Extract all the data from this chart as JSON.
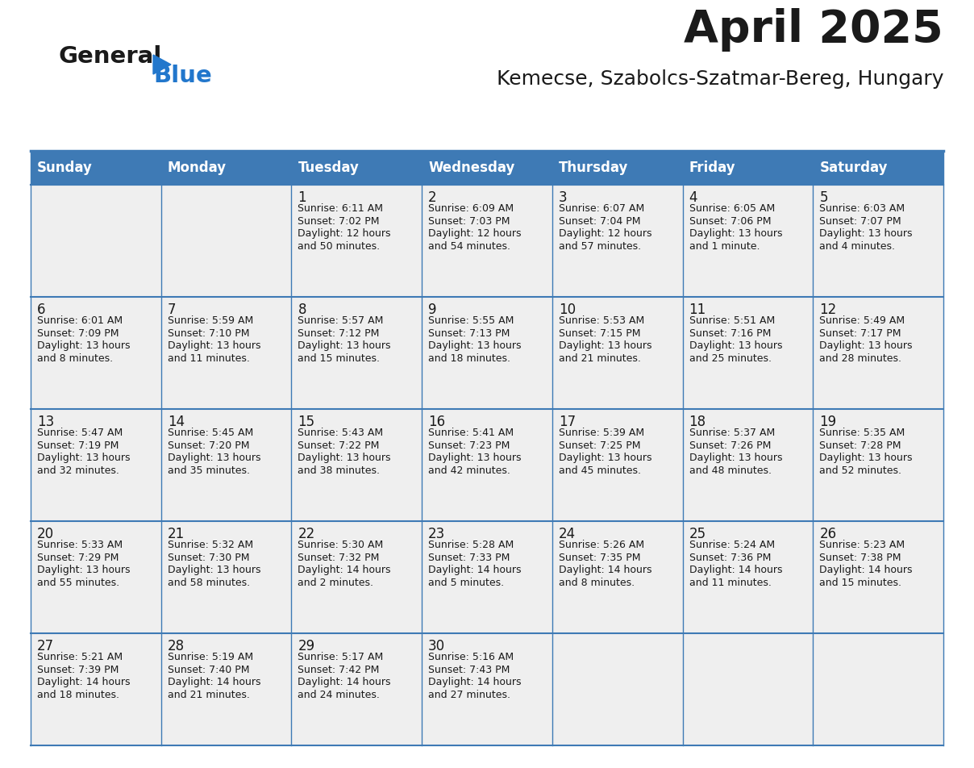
{
  "title": "April 2025",
  "subtitle": "Kemecse, Szabolcs-Szatmar-Bereg, Hungary",
  "days_of_week": [
    "Sunday",
    "Monday",
    "Tuesday",
    "Wednesday",
    "Thursday",
    "Friday",
    "Saturday"
  ],
  "header_bg": "#3E7AB5",
  "header_text": "#FFFFFF",
  "cell_bg": "#EFEFEF",
  "border_color": "#3E7AB5",
  "title_color": "#1A1A1A",
  "subtitle_color": "#1A1A1A",
  "day_number_color": "#1A1A1A",
  "detail_color": "#1A1A1A",
  "logo_general_color": "#1A1A1A",
  "logo_blue_color": "#2277CC",
  "calendar": [
    [
      {
        "day": "",
        "sunrise": "",
        "sunset": "",
        "daylight": ""
      },
      {
        "day": "",
        "sunrise": "",
        "sunset": "",
        "daylight": ""
      },
      {
        "day": "1",
        "sunrise": "6:11 AM",
        "sunset": "7:02 PM",
        "daylight_line1": "Daylight: 12 hours",
        "daylight_line2": "and 50 minutes."
      },
      {
        "day": "2",
        "sunrise": "6:09 AM",
        "sunset": "7:03 PM",
        "daylight_line1": "Daylight: 12 hours",
        "daylight_line2": "and 54 minutes."
      },
      {
        "day": "3",
        "sunrise": "6:07 AM",
        "sunset": "7:04 PM",
        "daylight_line1": "Daylight: 12 hours",
        "daylight_line2": "and 57 minutes."
      },
      {
        "day": "4",
        "sunrise": "6:05 AM",
        "sunset": "7:06 PM",
        "daylight_line1": "Daylight: 13 hours",
        "daylight_line2": "and 1 minute."
      },
      {
        "day": "5",
        "sunrise": "6:03 AM",
        "sunset": "7:07 PM",
        "daylight_line1": "Daylight: 13 hours",
        "daylight_line2": "and 4 minutes."
      }
    ],
    [
      {
        "day": "6",
        "sunrise": "6:01 AM",
        "sunset": "7:09 PM",
        "daylight_line1": "Daylight: 13 hours",
        "daylight_line2": "and 8 minutes."
      },
      {
        "day": "7",
        "sunrise": "5:59 AM",
        "sunset": "7:10 PM",
        "daylight_line1": "Daylight: 13 hours",
        "daylight_line2": "and 11 minutes."
      },
      {
        "day": "8",
        "sunrise": "5:57 AM",
        "sunset": "7:12 PM",
        "daylight_line1": "Daylight: 13 hours",
        "daylight_line2": "and 15 minutes."
      },
      {
        "day": "9",
        "sunrise": "5:55 AM",
        "sunset": "7:13 PM",
        "daylight_line1": "Daylight: 13 hours",
        "daylight_line2": "and 18 minutes."
      },
      {
        "day": "10",
        "sunrise": "5:53 AM",
        "sunset": "7:15 PM",
        "daylight_line1": "Daylight: 13 hours",
        "daylight_line2": "and 21 minutes."
      },
      {
        "day": "11",
        "sunrise": "5:51 AM",
        "sunset": "7:16 PM",
        "daylight_line1": "Daylight: 13 hours",
        "daylight_line2": "and 25 minutes."
      },
      {
        "day": "12",
        "sunrise": "5:49 AM",
        "sunset": "7:17 PM",
        "daylight_line1": "Daylight: 13 hours",
        "daylight_line2": "and 28 minutes."
      }
    ],
    [
      {
        "day": "13",
        "sunrise": "5:47 AM",
        "sunset": "7:19 PM",
        "daylight_line1": "Daylight: 13 hours",
        "daylight_line2": "and 32 minutes."
      },
      {
        "day": "14",
        "sunrise": "5:45 AM",
        "sunset": "7:20 PM",
        "daylight_line1": "Daylight: 13 hours",
        "daylight_line2": "and 35 minutes."
      },
      {
        "day": "15",
        "sunrise": "5:43 AM",
        "sunset": "7:22 PM",
        "daylight_line1": "Daylight: 13 hours",
        "daylight_line2": "and 38 minutes."
      },
      {
        "day": "16",
        "sunrise": "5:41 AM",
        "sunset": "7:23 PM",
        "daylight_line1": "Daylight: 13 hours",
        "daylight_line2": "and 42 minutes."
      },
      {
        "day": "17",
        "sunrise": "5:39 AM",
        "sunset": "7:25 PM",
        "daylight_line1": "Daylight: 13 hours",
        "daylight_line2": "and 45 minutes."
      },
      {
        "day": "18",
        "sunrise": "5:37 AM",
        "sunset": "7:26 PM",
        "daylight_line1": "Daylight: 13 hours",
        "daylight_line2": "and 48 minutes."
      },
      {
        "day": "19",
        "sunrise": "5:35 AM",
        "sunset": "7:28 PM",
        "daylight_line1": "Daylight: 13 hours",
        "daylight_line2": "and 52 minutes."
      }
    ],
    [
      {
        "day": "20",
        "sunrise": "5:33 AM",
        "sunset": "7:29 PM",
        "daylight_line1": "Daylight: 13 hours",
        "daylight_line2": "and 55 minutes."
      },
      {
        "day": "21",
        "sunrise": "5:32 AM",
        "sunset": "7:30 PM",
        "daylight_line1": "Daylight: 13 hours",
        "daylight_line2": "and 58 minutes."
      },
      {
        "day": "22",
        "sunrise": "5:30 AM",
        "sunset": "7:32 PM",
        "daylight_line1": "Daylight: 14 hours",
        "daylight_line2": "and 2 minutes."
      },
      {
        "day": "23",
        "sunrise": "5:28 AM",
        "sunset": "7:33 PM",
        "daylight_line1": "Daylight: 14 hours",
        "daylight_line2": "and 5 minutes."
      },
      {
        "day": "24",
        "sunrise": "5:26 AM",
        "sunset": "7:35 PM",
        "daylight_line1": "Daylight: 14 hours",
        "daylight_line2": "and 8 minutes."
      },
      {
        "day": "25",
        "sunrise": "5:24 AM",
        "sunset": "7:36 PM",
        "daylight_line1": "Daylight: 14 hours",
        "daylight_line2": "and 11 minutes."
      },
      {
        "day": "26",
        "sunrise": "5:23 AM",
        "sunset": "7:38 PM",
        "daylight_line1": "Daylight: 14 hours",
        "daylight_line2": "and 15 minutes."
      }
    ],
    [
      {
        "day": "27",
        "sunrise": "5:21 AM",
        "sunset": "7:39 PM",
        "daylight_line1": "Daylight: 14 hours",
        "daylight_line2": "and 18 minutes."
      },
      {
        "day": "28",
        "sunrise": "5:19 AM",
        "sunset": "7:40 PM",
        "daylight_line1": "Daylight: 14 hours",
        "daylight_line2": "and 21 minutes."
      },
      {
        "day": "29",
        "sunrise": "5:17 AM",
        "sunset": "7:42 PM",
        "daylight_line1": "Daylight: 14 hours",
        "daylight_line2": "and 24 minutes."
      },
      {
        "day": "30",
        "sunrise": "5:16 AM",
        "sunset": "7:43 PM",
        "daylight_line1": "Daylight: 14 hours",
        "daylight_line2": "and 27 minutes."
      },
      {
        "day": "",
        "sunrise": "",
        "sunset": "",
        "daylight_line1": "",
        "daylight_line2": ""
      },
      {
        "day": "",
        "sunrise": "",
        "sunset": "",
        "daylight_line1": "",
        "daylight_line2": ""
      },
      {
        "day": "",
        "sunrise": "",
        "sunset": "",
        "daylight_line1": "",
        "daylight_line2": ""
      }
    ]
  ]
}
